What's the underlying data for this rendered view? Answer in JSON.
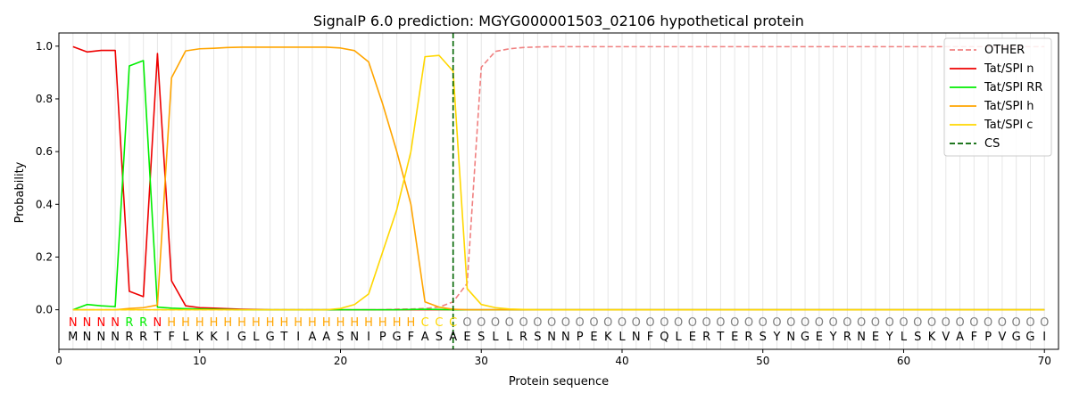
{
  "chart_data": {
    "type": "line",
    "title": "SignalP 6.0 prediction: MGYG000001503_02106 hypothetical protein",
    "xlabel": "Protein sequence",
    "ylabel": "Probability",
    "xlim": [
      0,
      71
    ],
    "ylim": [
      -0.15,
      1.05
    ],
    "xticks": [
      0,
      10,
      20,
      30,
      40,
      50,
      60,
      70
    ],
    "yticks": [
      0.0,
      0.2,
      0.4,
      0.6,
      0.8,
      1.0
    ],
    "grid": "vertical lines at each residue",
    "legend_position": "top-right",
    "cs_position": 28,
    "sequence": [
      "M",
      "N",
      "N",
      "N",
      "R",
      "R",
      "T",
      "F",
      "L",
      "K",
      "K",
      "I",
      "G",
      "L",
      "G",
      "T",
      "I",
      "A",
      "A",
      "S",
      "N",
      "I",
      "P",
      "G",
      "F",
      "A",
      "S",
      "A",
      "E",
      "S",
      "L",
      "L",
      "R",
      "S",
      "N",
      "N",
      "P",
      "E",
      "K",
      "L",
      "N",
      "F",
      "Q",
      "L",
      "E",
      "R",
      "T",
      "E",
      "R",
      "S",
      "Y",
      "N",
      "G",
      "E",
      "Y",
      "R",
      "N",
      "E",
      "Y",
      "L",
      "S",
      "K",
      "V",
      "A",
      "F",
      "P",
      "V",
      "G",
      "G",
      "I"
    ],
    "labels": [
      "N",
      "N",
      "N",
      "N",
      "R",
      "R",
      "N",
      "H",
      "H",
      "H",
      "H",
      "H",
      "H",
      "H",
      "H",
      "H",
      "H",
      "H",
      "H",
      "H",
      "H",
      "H",
      "H",
      "H",
      "H",
      "C",
      "C",
      "C",
      "O",
      "O",
      "O",
      "O",
      "O",
      "O",
      "O",
      "O",
      "O",
      "O",
      "O",
      "O",
      "O",
      "O",
      "O",
      "O",
      "O",
      "O",
      "O",
      "O",
      "O",
      "O",
      "O",
      "O",
      "O",
      "O",
      "O",
      "O",
      "O",
      "O",
      "O",
      "O",
      "O",
      "O",
      "O",
      "O",
      "O",
      "O",
      "O",
      "O",
      "O",
      "O"
    ],
    "label_colors": {
      "N": "#ff0000",
      "R": "#00ee00",
      "H": "#ffa500",
      "C": "#ffd700",
      "O": "#808080"
    },
    "series": [
      {
        "name": "OTHER",
        "color": "#f08080",
        "dash": true,
        "values": [
          0,
          0,
          0,
          0,
          0,
          0,
          0,
          0,
          0,
          0,
          0,
          0,
          0,
          0,
          0,
          0,
          0,
          0,
          0,
          0,
          0,
          0,
          0,
          0.002,
          0.003,
          0.005,
          0.01,
          0.03,
          0.1,
          0.92,
          0.98,
          0.99,
          0.995,
          0.997,
          0.998,
          0.998,
          0.998,
          0.998,
          0.998,
          0.998,
          0.998,
          0.998,
          0.998,
          0.998,
          0.998,
          0.998,
          0.998,
          0.998,
          0.998,
          0.998,
          0.998,
          0.998,
          0.998,
          0.998,
          0.998,
          0.998,
          0.998,
          0.998,
          0.998,
          0.998,
          0.998,
          0.998,
          0.998,
          0.998,
          0.998,
          0.998,
          0.998,
          0.998,
          0.998,
          0.998
        ]
      },
      {
        "name": "Tat/SPI n",
        "color": "#ee0000",
        "dash": false,
        "values": [
          0.998,
          0.978,
          0.984,
          0.984,
          0.07,
          0.05,
          0.972,
          0.11,
          0.015,
          0.008,
          0.006,
          0.004,
          0.002,
          0.001,
          0,
          0,
          0,
          0,
          0,
          0,
          0,
          0,
          0,
          0,
          0,
          0,
          0,
          0,
          0,
          0,
          0,
          0,
          0,
          0,
          0,
          0,
          0,
          0,
          0,
          0,
          0,
          0,
          0,
          0,
          0,
          0,
          0,
          0,
          0,
          0,
          0,
          0,
          0,
          0,
          0,
          0,
          0,
          0,
          0,
          0,
          0,
          0,
          0,
          0,
          0,
          0,
          0,
          0,
          0,
          0
        ]
      },
      {
        "name": "Tat/SPI RR",
        "color": "#00ee00",
        "dash": false,
        "values": [
          0,
          0.02,
          0.015,
          0.012,
          0.925,
          0.945,
          0.01,
          0.006,
          0.004,
          0.003,
          0.002,
          0.001,
          0,
          0,
          0,
          0,
          0,
          0,
          0,
          0,
          0,
          0,
          0,
          0,
          0.001,
          0.002,
          0.001,
          0,
          0,
          0,
          0,
          0,
          0,
          0,
          0,
          0,
          0,
          0,
          0,
          0,
          0,
          0,
          0,
          0,
          0,
          0,
          0,
          0,
          0,
          0,
          0,
          0,
          0,
          0,
          0,
          0,
          0,
          0,
          0,
          0,
          0,
          0,
          0,
          0,
          0,
          0,
          0,
          0,
          0,
          0
        ]
      },
      {
        "name": "Tat/SPI h",
        "color": "#ffa500",
        "dash": false,
        "values": [
          0,
          0,
          0,
          0,
          0.005,
          0.008,
          0.018,
          0.88,
          0.982,
          0.99,
          0.992,
          0.995,
          0.996,
          0.996,
          0.996,
          0.996,
          0.996,
          0.996,
          0.996,
          0.993,
          0.983,
          0.94,
          0.78,
          0.6,
          0.4,
          0.03,
          0.01,
          0.002,
          0,
          0,
          0,
          0,
          0,
          0,
          0,
          0,
          0,
          0,
          0,
          0,
          0,
          0,
          0,
          0,
          0,
          0,
          0,
          0,
          0,
          0,
          0,
          0,
          0,
          0,
          0,
          0,
          0,
          0,
          0,
          0,
          0,
          0,
          0,
          0,
          0,
          0,
          0,
          0,
          0,
          0
        ]
      },
      {
        "name": "Tat/SPI c",
        "color": "#ffd700",
        "dash": false,
        "values": [
          0,
          0,
          0,
          0,
          0,
          0,
          0,
          0,
          0,
          0,
          0,
          0,
          0,
          0,
          0,
          0,
          0,
          0,
          0,
          0.005,
          0.02,
          0.06,
          0.22,
          0.38,
          0.6,
          0.96,
          0.965,
          0.905,
          0.08,
          0.02,
          0.008,
          0.003,
          0.001,
          0,
          0,
          0,
          0,
          0,
          0,
          0,
          0,
          0,
          0,
          0,
          0,
          0,
          0,
          0,
          0,
          0,
          0,
          0,
          0,
          0,
          0,
          0,
          0,
          0,
          0,
          0,
          0,
          0,
          0,
          0,
          0,
          0,
          0,
          0,
          0,
          0
        ]
      },
      {
        "name": "CS",
        "color": "#006400",
        "dash": true,
        "vertical": true
      }
    ]
  }
}
